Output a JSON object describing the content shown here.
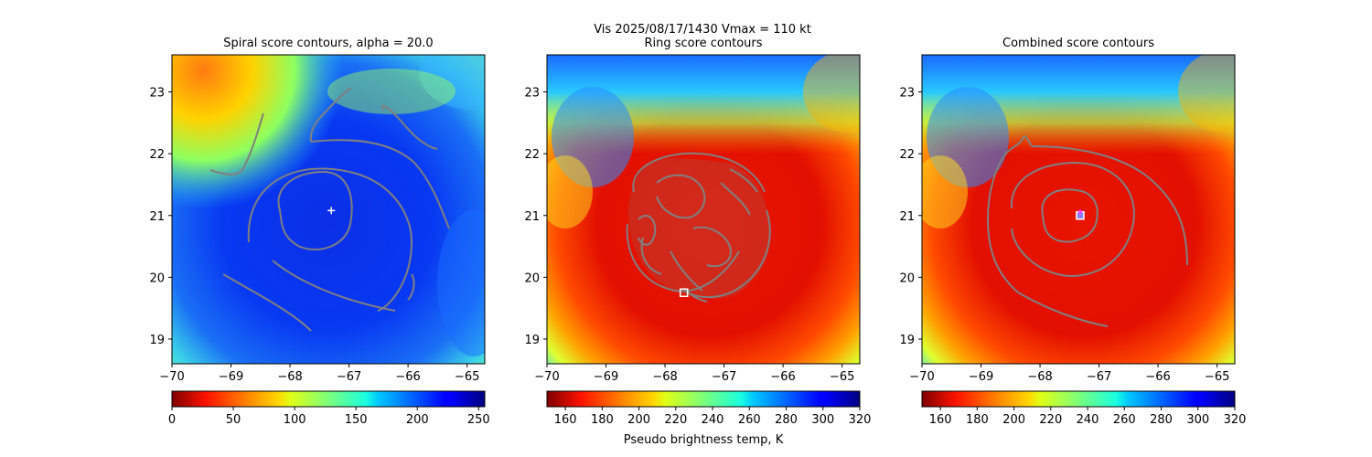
{
  "suptitle": "Vis  2025/08/17/1430    Vmax = 110 kt",
  "chart_data": [
    {
      "type": "heatmap",
      "title": "Spiral score contours, alpha = 20.0",
      "xlim": [
        -70,
        -64.7
      ],
      "ylim": [
        18.6,
        23.6
      ],
      "xticks": [
        -70,
        -69,
        -68,
        -67,
        -66,
        -65
      ],
      "yticks": [
        19,
        20,
        21,
        22,
        23
      ],
      "colorbar": {
        "colormap": "jet",
        "range": [
          0,
          255
        ],
        "ticks": [
          0,
          50,
          100,
          150,
          200,
          250
        ],
        "label": ""
      },
      "center_marker": {
        "symbol": "+",
        "color": "#ffffff",
        "lon": -67.3,
        "lat": 21.08
      }
    },
    {
      "type": "heatmap",
      "title": "Ring score contours",
      "xlim": [
        -70,
        -64.7
      ],
      "ylim": [
        18.6,
        23.6
      ],
      "xticks": [
        -70,
        -69,
        -68,
        -67,
        -66,
        -65
      ],
      "yticks": [
        19,
        20,
        21,
        22,
        23
      ],
      "colorbar": {
        "colormap": "jet_r",
        "range": [
          150,
          320
        ],
        "ticks": [
          160,
          180,
          200,
          220,
          240,
          260,
          280,
          300,
          320
        ],
        "label": "Pseudo brightness temp, K"
      },
      "center_marker": {
        "symbol": "square",
        "color": "#ffffff",
        "lon": -67.68,
        "lat": 19.75
      }
    },
    {
      "type": "heatmap",
      "title": "Combined score contours",
      "xlim": [
        -70,
        -64.7
      ],
      "ylim": [
        18.6,
        23.6
      ],
      "xticks": [
        -70,
        -69,
        -68,
        -67,
        -66,
        -65
      ],
      "yticks": [
        19,
        20,
        21,
        22,
        23
      ],
      "colorbar": {
        "colormap": "jet_r",
        "range": [
          150,
          320
        ],
        "ticks": [
          160,
          180,
          200,
          220,
          240,
          260,
          280,
          300,
          320
        ],
        "label": ""
      },
      "center_marker": {
        "symbol": "square+circle",
        "color": "#ffffff",
        "lon": -67.32,
        "lat": 21.0
      }
    }
  ]
}
